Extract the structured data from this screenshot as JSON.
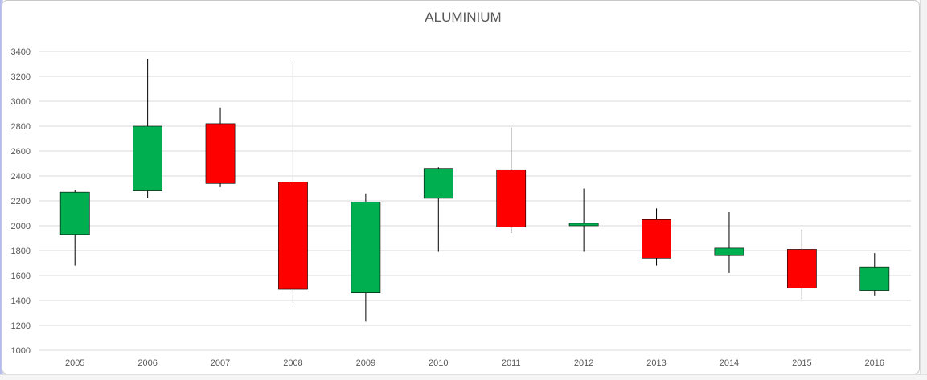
{
  "chart_data": {
    "type": "candlestick",
    "title": "ALUMINIUM",
    "xlabel": "",
    "ylabel": "",
    "ylim": [
      1000,
      3400
    ],
    "yticks": [
      1000,
      1200,
      1400,
      1600,
      1800,
      2000,
      2200,
      2400,
      2600,
      2800,
      3000,
      3200,
      3400
    ],
    "grid": true,
    "colors": {
      "up": "#00b050",
      "down": "#ff0000",
      "wick": "#000000",
      "grid": "#d9d9d9"
    },
    "candles": [
      {
        "x": "2005",
        "open": 1930,
        "high": 2290,
        "low": 1680,
        "close": 2270
      },
      {
        "x": "2006",
        "open": 2280,
        "high": 3340,
        "low": 2220,
        "close": 2800
      },
      {
        "x": "2007",
        "open": 2820,
        "high": 2950,
        "low": 2310,
        "close": 2340
      },
      {
        "x": "2008",
        "open": 2350,
        "high": 3320,
        "low": 1380,
        "close": 1490
      },
      {
        "x": "2009",
        "open": 1460,
        "high": 2260,
        "low": 1230,
        "close": 2190
      },
      {
        "x": "2010",
        "open": 2220,
        "high": 2470,
        "low": 1790,
        "close": 2460
      },
      {
        "x": "2011",
        "open": 2450,
        "high": 2790,
        "low": 1940,
        "close": 1990
      },
      {
        "x": "2012",
        "open": 2000,
        "high": 2300,
        "low": 1790,
        "close": 2020
      },
      {
        "x": "2013",
        "open": 2050,
        "high": 2140,
        "low": 1680,
        "close": 1740
      },
      {
        "x": "2014",
        "open": 1760,
        "high": 2110,
        "low": 1620,
        "close": 1820
      },
      {
        "x": "2015",
        "open": 1810,
        "high": 1970,
        "low": 1410,
        "close": 1500
      },
      {
        "x": "2016",
        "open": 1480,
        "high": 1780,
        "low": 1440,
        "close": 1670
      }
    ]
  }
}
